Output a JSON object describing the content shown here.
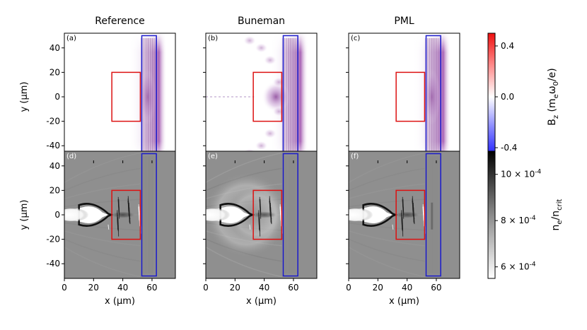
{
  "chart_data": {
    "type": "heatmap",
    "columns": [
      "Reference",
      "Buneman",
      "PML"
    ],
    "x": {
      "label": "x (μm)",
      "lim": [
        0,
        76
      ],
      "ticks": [
        0,
        20,
        40,
        60
      ]
    },
    "y": {
      "label": "y (μm)",
      "lim": [
        -52,
        52
      ],
      "ticks": [
        40,
        20,
        0,
        -20,
        -40
      ]
    },
    "rows": [
      {
        "quantity": "B_z (m_e ω_0 / e)",
        "colormap": "seismic",
        "colorbar": {
          "lim": [
            -0.5,
            0.5
          ],
          "ticks": [
            0.4,
            0.0,
            -0.4
          ],
          "tick_labels": [
            "0.4",
            "0.0",
            "-0.4"
          ]
        },
        "panels": [
          {
            "label": "(a)",
            "case": "Reference"
          },
          {
            "label": "(b)",
            "case": "Buneman"
          },
          {
            "label": "(c)",
            "case": "PML"
          }
        ]
      },
      {
        "quantity": "n_e / n_crit",
        "colormap": "gray",
        "colorbar": {
          "lim": [
            0.00055,
            0.0011
          ],
          "ticks": [
            0.001,
            0.0008,
            0.0006
          ],
          "tick_labels": [
            "10 × 10",
            "8 × 10",
            "6 × 10"
          ],
          "exponent": "-4"
        },
        "panels": [
          {
            "label": "(d)",
            "case": "Reference"
          },
          {
            "label": "(e)",
            "case": "Buneman"
          },
          {
            "label": "(f)",
            "case": "PML"
          }
        ]
      }
    ],
    "annotations": [
      {
        "shape": "rectangle",
        "color": "#dd1111",
        "x": [
          32.5,
          52
        ],
        "y": [
          -20,
          20
        ]
      },
      {
        "shape": "rectangle",
        "color": "#1a1acc",
        "x": [
          53,
          63
        ],
        "y": [
          -50,
          50
        ]
      }
    ],
    "grid": false
  },
  "colors": {
    "red_box": "#dd1111",
    "blue_box": "#1a1acc"
  }
}
